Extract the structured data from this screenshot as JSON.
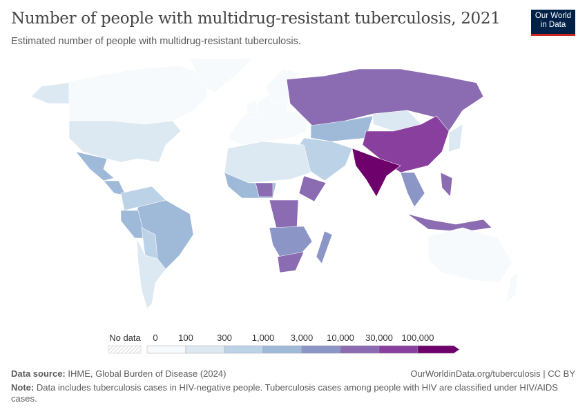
{
  "header": {
    "title": "Number of people with multidrug-resistant tuberculosis, 2021",
    "subtitle": "Estimated number of people with multidrug-resistant tuberculosis.",
    "logo_line1": "Our World",
    "logo_line2": "in Data"
  },
  "legend": {
    "no_data_label": "No data",
    "ticks": [
      "0",
      "100",
      "300",
      "1,000",
      "3,000",
      "10,000",
      "30,000",
      "100,000"
    ],
    "colors": [
      "#f6fafc",
      "#dde9f2",
      "#bcd2e6",
      "#9fbad8",
      "#8b96c6",
      "#8b6bb1",
      "#883f9d",
      "#6e016b"
    ],
    "no_data_color": "#e6e6e6"
  },
  "regions": [
    {
      "name": "Canada",
      "bin": 0
    },
    {
      "name": "Alaska",
      "bin": 1
    },
    {
      "name": "United States",
      "bin": 1
    },
    {
      "name": "Greenland",
      "bin": 0
    },
    {
      "name": "Mexico",
      "bin": 3
    },
    {
      "name": "Central America",
      "bin": 3
    },
    {
      "name": "Colombia-Venezuela",
      "bin": 2
    },
    {
      "name": "Brazil",
      "bin": 3
    },
    {
      "name": "Peru",
      "bin": 3
    },
    {
      "name": "Bolivia-Paraguay",
      "bin": 2
    },
    {
      "name": "Argentina-Chile",
      "bin": 1
    },
    {
      "name": "Europe",
      "bin": 0
    },
    {
      "name": "Scandinavia",
      "bin": 0
    },
    {
      "name": "United Kingdom",
      "bin": 0
    },
    {
      "name": "Russia",
      "bin": 5
    },
    {
      "name": "Central Asia",
      "bin": 3
    },
    {
      "name": "Mongolia",
      "bin": 1
    },
    {
      "name": "China",
      "bin": 6
    },
    {
      "name": "India",
      "bin": 7
    },
    {
      "name": "Southeast Asia",
      "bin": 4
    },
    {
      "name": "Indonesia",
      "bin": 5
    },
    {
      "name": "Philippines",
      "bin": 5
    },
    {
      "name": "Japan",
      "bin": 1
    },
    {
      "name": "Middle East",
      "bin": 2
    },
    {
      "name": "North Africa",
      "bin": 1
    },
    {
      "name": "West Africa",
      "bin": 3
    },
    {
      "name": "Nigeria",
      "bin": 5
    },
    {
      "name": "Ethiopia",
      "bin": 5
    },
    {
      "name": "DR Congo",
      "bin": 5
    },
    {
      "name": "Southern Africa",
      "bin": 4
    },
    {
      "name": "South Africa",
      "bin": 5
    },
    {
      "name": "Madagascar",
      "bin": 4
    },
    {
      "name": "Australia",
      "bin": 0
    },
    {
      "name": "New Zealand",
      "bin": 0
    }
  ],
  "footer": {
    "source_label": "Data source:",
    "source": "IHME, Global Burden of Disease (2024)",
    "url": "OurWorldinData.org/tuberculosis | CC BY",
    "note_label": "Note:",
    "note": "Data includes tuberculosis cases in HIV-negative people. Tuberculosis cases among people with HIV are classified under HIV/AIDS cases."
  }
}
